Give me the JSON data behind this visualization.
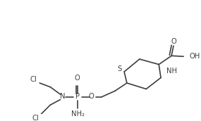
{
  "bg_color": "#ffffff",
  "line_color": "#3d3d3d",
  "line_width": 1.2,
  "font_size": 7.2,
  "figsize": [
    2.85,
    1.72
  ],
  "dpi": 100,
  "atoms": {
    "S_label": "S",
    "NH_label": "NH",
    "H_label": "H",
    "N_label": "N",
    "P_label": "P",
    "O_label": "O",
    "NH2_label": "NH₂",
    "Cl1_label": "Cl",
    "Cl2_label": "Cl",
    "O_top_label": "O",
    "OH_label": "OH"
  }
}
